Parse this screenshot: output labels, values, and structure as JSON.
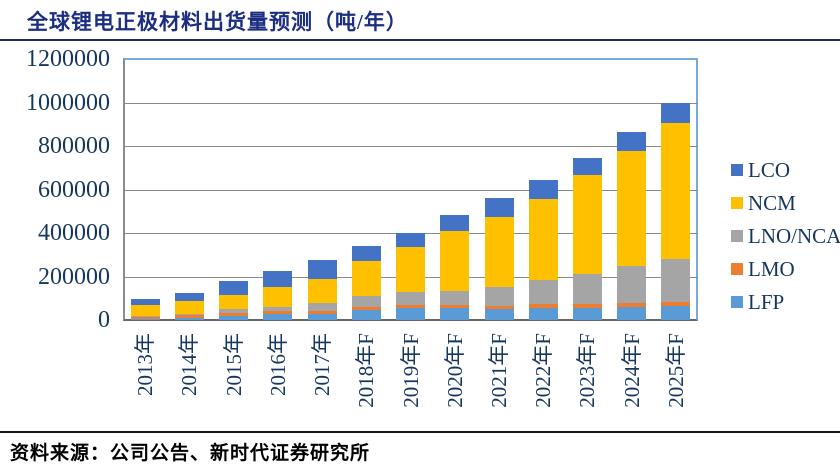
{
  "page": {
    "title": "全球锂电正极材料出货量预测（吨/年）",
    "source": "资料来源：公司公告、新时代证券研究所"
  },
  "chart_data": {
    "type": "bar",
    "stacked": true,
    "title": "全球锂电正极材料出货量预测（吨/年）",
    "unit": "吨/年",
    "categories": [
      "2013年",
      "2014年",
      "2015年",
      "2016年",
      "2017年",
      "2018年F",
      "2019年F",
      "2020年F",
      "2021年F",
      "2022年F",
      "2023年F",
      "2024年F",
      "2025年F"
    ],
    "series": [
      {
        "name": "LFP",
        "color": "#5B9BD5",
        "values": [
          6000,
          11000,
          20000,
          29000,
          28000,
          46000,
          57000,
          57000,
          49000,
          54000,
          57000,
          58000,
          65000
        ]
      },
      {
        "name": "LMO",
        "color": "#ED7D31",
        "values": [
          12000,
          14000,
          14000,
          12000,
          14000,
          12000,
          12000,
          12000,
          17000,
          18000,
          16000,
          18000,
          20000
        ]
      },
      {
        "name": "LNO/NCA",
        "color": "#A5A5A5",
        "values": [
          2000,
          4000,
          17000,
          17000,
          35000,
          51000,
          58000,
          65000,
          88000,
          112000,
          138000,
          172000,
          195000
        ]
      },
      {
        "name": "NCM",
        "color": "#FFC000",
        "values": [
          48000,
          57000,
          65000,
          92000,
          113000,
          160000,
          208000,
          274000,
          320000,
          374000,
          454000,
          530000,
          628000
        ]
      },
      {
        "name": "LCO",
        "color": "#4472C4",
        "values": [
          30000,
          38000,
          62000,
          75000,
          85000,
          71000,
          65000,
          74000,
          85000,
          88000,
          81000,
          85000,
          90000
        ]
      }
    ],
    "stack_order_bottom_to_top": [
      "LFP",
      "LMO",
      "LNO/NCA",
      "NCM",
      "LCO"
    ],
    "legend": [
      "LCO",
      "NCM",
      "LNO/NCA",
      "LMO",
      "LFP"
    ],
    "legend_position": "right",
    "y_ticks": [
      0,
      200000,
      400000,
      600000,
      800000,
      1000000,
      1200000
    ],
    "ylim": [
      0,
      1200000
    ],
    "grid": true
  }
}
